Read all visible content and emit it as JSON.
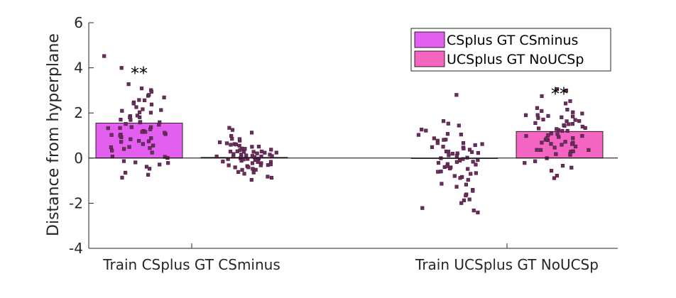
{
  "chart_data": {
    "type": "bar",
    "title": "",
    "xlabel": "",
    "ylabel": "Distance from hyperplane",
    "ylim": [
      -4,
      6
    ],
    "yticks": [
      -4,
      -2,
      0,
      2,
      4,
      6
    ],
    "grid": false,
    "legend_position": "top-right",
    "categories": [
      "Train CSplus GT CSminus",
      "Train UCSplus GT NoUCSp"
    ],
    "series": [
      {
        "name": "CSplus GT CSminus",
        "color": "#e35fef",
        "values": [
          1.55,
          0.0
        ],
        "significance": [
          "**",
          ""
        ]
      },
      {
        "name": "UCSplus GT NoUCSp",
        "color": "#f565c2",
        "values": [
          0.03,
          1.18
        ],
        "significance": [
          "",
          "**"
        ]
      }
    ],
    "point_color": "#6b2d5c",
    "scatter": [
      {
        "category": "Train CSplus GT CSminus",
        "series": "CSplus GT CSminus",
        "y": [
          4.5,
          4.0,
          3.3,
          3.1,
          3.0,
          2.9,
          2.8,
          2.8,
          2.7,
          2.6,
          2.5,
          2.4,
          2.3,
          2.2,
          2.1,
          2.0,
          2.0,
          1.9,
          1.8,
          1.8,
          1.7,
          1.7,
          1.6,
          1.6,
          1.5,
          1.5,
          1.4,
          1.4,
          1.3,
          1.3,
          1.2,
          1.2,
          1.1,
          1.1,
          1.0,
          1.0,
          0.9,
          0.9,
          0.8,
          0.8,
          0.7,
          0.6,
          0.6,
          0.5,
          0.5,
          0.4,
          0.3,
          0.2,
          0.1,
          0.0,
          -0.1,
          -0.2,
          -0.3,
          -0.4,
          -0.5,
          -0.6,
          -0.7,
          -0.9,
          2.6,
          2.1,
          1.9,
          1.6,
          1.3,
          1.0,
          0.7,
          0.4,
          0.1,
          -0.2,
          2.4,
          1.2
        ]
      },
      {
        "category": "Train CSplus GT CSminus",
        "series": "UCSplus GT NoUCSp",
        "y": [
          1.3,
          1.2,
          1.1,
          1.0,
          0.9,
          0.8,
          0.8,
          0.7,
          0.7,
          0.6,
          0.6,
          0.5,
          0.5,
          0.5,
          0.4,
          0.4,
          0.4,
          0.3,
          0.3,
          0.3,
          0.3,
          0.2,
          0.2,
          0.2,
          0.2,
          0.1,
          0.1,
          0.1,
          0.1,
          0.0,
          0.0,
          0.0,
          0.0,
          -0.1,
          -0.1,
          -0.1,
          -0.1,
          -0.2,
          -0.2,
          -0.2,
          -0.2,
          -0.3,
          -0.3,
          -0.3,
          -0.4,
          -0.4,
          -0.4,
          -0.5,
          -0.5,
          -0.6,
          -0.6,
          -0.7,
          -0.8,
          -0.9,
          -1.0,
          0.2,
          0.0,
          -0.3,
          0.6,
          0.1,
          -0.1,
          0.3,
          -0.5,
          0.4,
          -0.2,
          0.1,
          0.0,
          0.2
        ]
      },
      {
        "category": "Train UCSplus GT NoUCSp",
        "series": "CSplus GT CSminus",
        "y": [
          2.8,
          1.6,
          1.5,
          1.4,
          1.3,
          1.2,
          1.1,
          1.0,
          1.0,
          0.9,
          0.8,
          0.8,
          0.7,
          0.7,
          0.6,
          0.6,
          0.5,
          0.5,
          0.4,
          0.4,
          0.3,
          0.3,
          0.2,
          0.2,
          0.1,
          0.1,
          0.0,
          0.0,
          -0.1,
          -0.1,
          -0.2,
          -0.2,
          -0.3,
          -0.3,
          -0.4,
          -0.4,
          -0.5,
          -0.5,
          -0.6,
          -0.6,
          -0.7,
          -0.7,
          -0.8,
          -0.9,
          -1.0,
          -1.1,
          -1.2,
          -1.3,
          -1.4,
          -1.5,
          -1.6,
          -1.7,
          -1.8,
          -1.9,
          -2.0,
          -2.2,
          -2.3,
          -2.4,
          0.5,
          0.2,
          -0.2,
          0.8,
          -0.4,
          0.3,
          -0.8,
          0.0
        ]
      },
      {
        "category": "Train UCSplus GT NoUCSp",
        "series": "UCSplus GT NoUCSp",
        "y": [
          3.1,
          3.0,
          2.7,
          2.5,
          2.4,
          2.2,
          2.1,
          2.0,
          2.0,
          1.9,
          1.9,
          1.8,
          1.8,
          1.7,
          1.7,
          1.6,
          1.6,
          1.5,
          1.5,
          1.4,
          1.4,
          1.3,
          1.3,
          1.2,
          1.2,
          1.1,
          1.1,
          1.0,
          1.0,
          0.9,
          0.9,
          0.8,
          0.8,
          0.7,
          0.7,
          0.6,
          0.6,
          0.5,
          0.5,
          0.4,
          0.4,
          0.3,
          0.3,
          0.2,
          0.1,
          0.0,
          -0.1,
          -0.2,
          -0.3,
          -0.4,
          -0.6,
          -0.8,
          -0.9,
          1.9,
          1.6,
          1.3,
          1.0,
          0.7,
          0.4,
          1.8,
          1.2,
          0.6,
          2.1,
          1.5,
          0.9,
          0.2
        ]
      }
    ]
  }
}
